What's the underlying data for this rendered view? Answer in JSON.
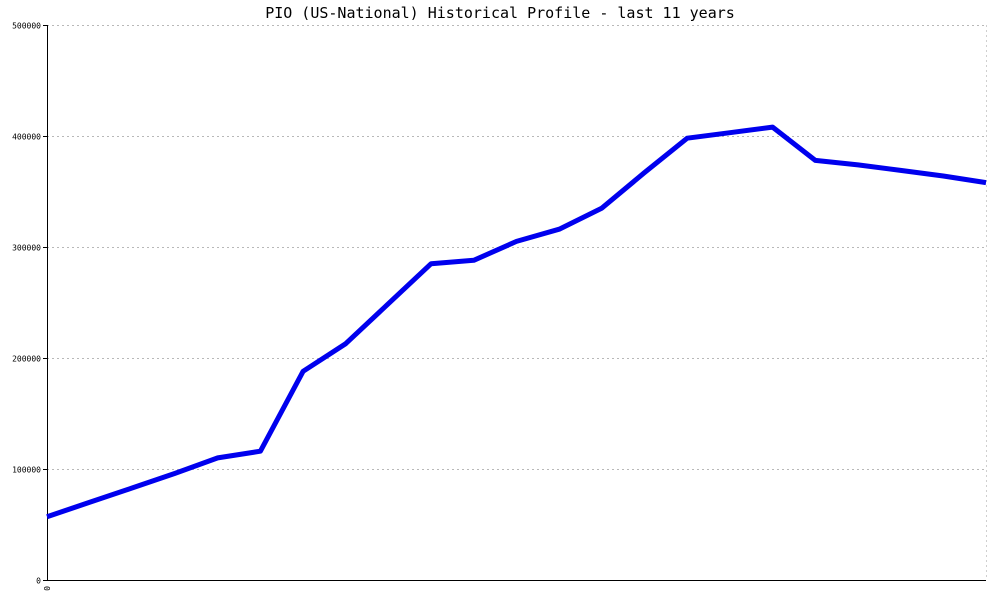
{
  "chart_data": {
    "type": "line",
    "title": "PIO (US-National) Historical Profile - last 11 years",
    "xlabel": "",
    "ylabel": "",
    "x_tick_labels": [
      "0"
    ],
    "ylim": [
      0,
      500000
    ],
    "y_ticks": [
      0,
      100000,
      200000,
      300000,
      400000,
      500000
    ],
    "y_tick_labels": [
      "0",
      "100000",
      "200000",
      "300000",
      "400000",
      "500000"
    ],
    "grid": true,
    "x": [
      0,
      1,
      2,
      3,
      4,
      5,
      6,
      7,
      8,
      9,
      10,
      11,
      12,
      13,
      14,
      15,
      16,
      17,
      18,
      19,
      20,
      21,
      22
    ],
    "series": [
      {
        "color": "#0000ee",
        "values": [
          57000,
          70000,
          83000,
          96000,
          110000,
          116000,
          188000,
          213000,
          249000,
          285000,
          288000,
          305000,
          316000,
          335000,
          367000,
          398000,
          403000,
          408000,
          378000,
          374000,
          369000,
          364000,
          358000
        ]
      }
    ]
  }
}
